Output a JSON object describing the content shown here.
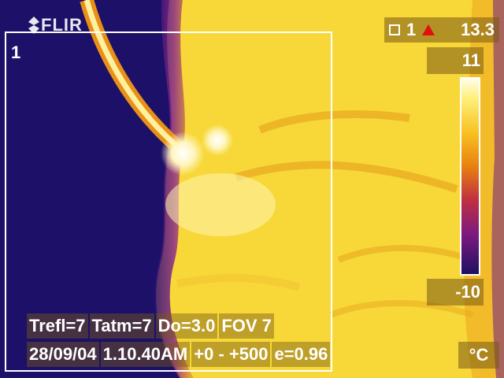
{
  "brand": "FLIR",
  "box_label": "1",
  "readout": {
    "spot_number": "1",
    "value": "13.3"
  },
  "scale": {
    "max": "11",
    "min": "-10",
    "unit": "°C"
  },
  "params": {
    "trefl": "Trefl=7",
    "tatm": "Tatm=7",
    "distance": "Do=3.0",
    "fov": "FOV 7"
  },
  "status": {
    "date": "28/09/04",
    "time": "1.10.40AM",
    "range": "+0 -  +500",
    "emissivity": "e=0.96"
  },
  "colors": {
    "palette": "iron",
    "overlay_text": "#ffffff",
    "alarm_triangle": "#e01010"
  }
}
